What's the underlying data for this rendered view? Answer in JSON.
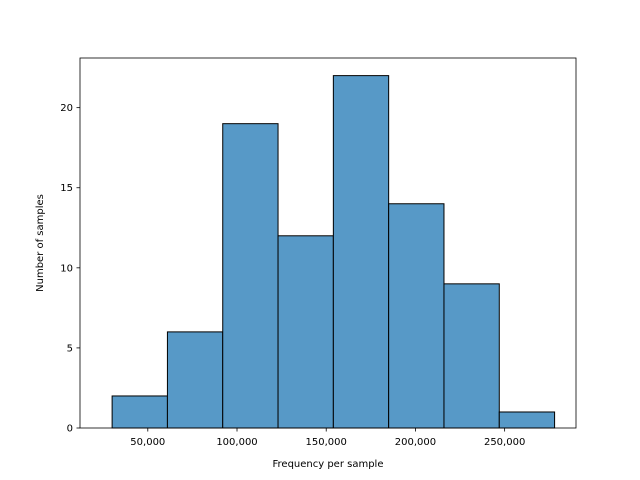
{
  "chart_data": {
    "type": "bar",
    "subtype": "histogram",
    "bin_edges": [
      30000,
      61000,
      92000,
      123000,
      154000,
      185000,
      216000,
      247000,
      278000
    ],
    "values": [
      2,
      6,
      19,
      12,
      22,
      14,
      9,
      1
    ],
    "xlabel": "Frequency per sample",
    "ylabel": "Number of samples",
    "xlim": [
      12000,
      290000
    ],
    "ylim": [
      0,
      23.1
    ],
    "x_ticks": [
      50000,
      100000,
      150000,
      200000,
      250000
    ],
    "x_tick_labels": [
      "50,000",
      "100,000",
      "150,000",
      "200,000",
      "250,000"
    ],
    "y_ticks": [
      0,
      5,
      10,
      15,
      20
    ],
    "y_tick_labels": [
      "0",
      "5",
      "10",
      "15",
      "20"
    ],
    "grid": false,
    "legend": "none",
    "bar_color": "#5799c7",
    "edge_color": "#000000"
  }
}
